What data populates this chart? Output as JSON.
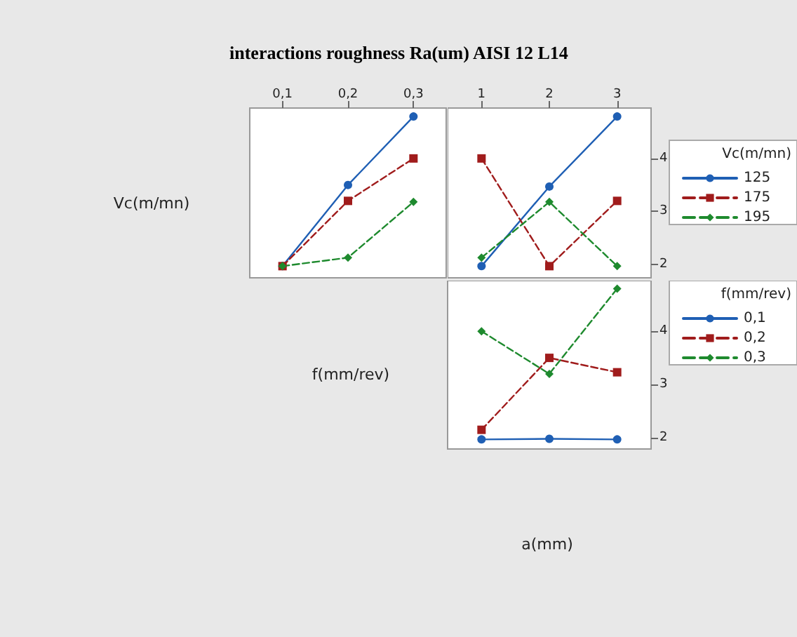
{
  "chart_data": [
    {
      "type": "line",
      "title": "interactions roughness Ra(um) AISI 12 L14",
      "ylabel": "Vc(m/mn)",
      "categories": [
        "0,1",
        "0,2",
        "0,3"
      ],
      "ylim": [
        1.75,
        4.95
      ],
      "yticks": [
        2,
        3,
        4
      ],
      "tick_labels": "x",
      "series": [
        {
          "color": "#1f5fb4",
          "marker": "circle",
          "line_style": "solid",
          "values": [
            1.97,
            3.5,
            4.79
          ]
        },
        {
          "color": "#a01c1c",
          "marker": "square",
          "line_style": "dashed",
          "values": [
            1.97,
            3.2,
            4.0
          ]
        },
        {
          "color": "#1e8a2e",
          "marker": "diamond",
          "line_style": "dashed",
          "values": [
            1.97,
            2.13,
            3.18
          ]
        }
      ]
    },
    {
      "type": "line",
      "legend_title": "Vc(m/mn)",
      "legend": "right",
      "categories": [
        "1",
        "2",
        "3"
      ],
      "ylim": [
        1.75,
        4.95
      ],
      "yticks": [
        2,
        3,
        4
      ],
      "series": [
        {
          "name": "125",
          "color": "#1f5fb4",
          "marker": "circle",
          "line_style": "solid",
          "values": [
            1.97,
            3.47,
            4.79
          ]
        },
        {
          "name": "175",
          "color": "#a01c1c",
          "marker": "square",
          "line_style": "dashed",
          "values": [
            4.0,
            1.97,
            3.2
          ]
        },
        {
          "name": "195",
          "color": "#1e8a2e",
          "marker": "diamond",
          "line_style": "dashed",
          "values": [
            2.13,
            3.18,
            1.97
          ]
        }
      ]
    },
    {
      "type": "line",
      "ylabel": "f(mm/rev)",
      "xlabel": "a(mm)",
      "legend_title": "f(mm/rev)",
      "legend": "right",
      "categories": [
        "1",
        "2",
        "3"
      ],
      "ylim": [
        1.79,
        4.95
      ],
      "yticks": [
        2,
        3,
        4
      ],
      "tick_labels": "y",
      "series": [
        {
          "name": "0,1",
          "color": "#1f5fb4",
          "marker": "circle",
          "line_style": "solid",
          "values": [
            1.97,
            1.98,
            1.97
          ]
        },
        {
          "name": "0,2",
          "color": "#a01c1c",
          "marker": "square",
          "line_style": "dashed",
          "values": [
            2.15,
            3.5,
            3.23
          ]
        },
        {
          "name": "0,3",
          "color": "#1e8a2e",
          "marker": "diamond",
          "line_style": "dashed",
          "values": [
            4.0,
            3.2,
            4.8
          ]
        }
      ]
    }
  ]
}
